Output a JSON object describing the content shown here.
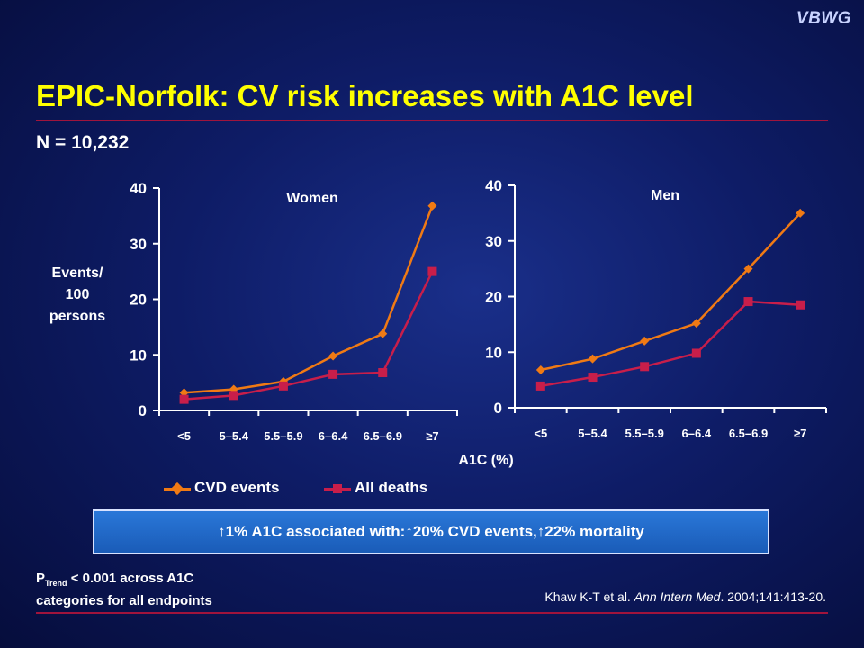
{
  "logo": "VBWG",
  "title": "EPIC-Norfolk: CV risk increases with A1C level",
  "subtitle": "N = 10,232",
  "colors": {
    "cvd": "#f07a14",
    "deaths": "#c81e4a",
    "title": "#ffff00",
    "rule": "#a0143c"
  },
  "y_axis_label_lines": [
    "Events/",
    "100",
    "persons"
  ],
  "x_axis_label": "A1C (%)",
  "legend": {
    "cvd": "CVD events",
    "deaths": "All deaths"
  },
  "callout": {
    "part1": "1% A1C associated with: ",
    "part2": "20% CVD events, ",
    "part3": "22% mortality",
    "arrow": "↑"
  },
  "ptrend": {
    "p": "P",
    "sub": "Trend",
    "line1_rest": " < 0.001 across A1C",
    "line2": "categories for all endpoints"
  },
  "citation": {
    "authors": "Khaw K-T et al. ",
    "journal": "Ann Intern Med",
    "rest": ". 2004;141:413-20."
  },
  "chart_data": [
    {
      "type": "line",
      "title": "Women",
      "categories": [
        "<5",
        "5–5.4",
        "5.5–5.9",
        "6–6.4",
        "6.5–6.9",
        "≥7"
      ],
      "ylim": [
        0,
        40
      ],
      "yticks": [
        0,
        10,
        20,
        30,
        40
      ],
      "series": [
        {
          "name": "CVD events",
          "values": [
            3.2,
            3.8,
            5.2,
            9.8,
            13.8,
            36.8
          ]
        },
        {
          "name": "All deaths",
          "values": [
            2.0,
            2.7,
            4.4,
            6.5,
            6.8,
            25.0
          ]
        }
      ]
    },
    {
      "type": "line",
      "title": "Men",
      "categories": [
        "<5",
        "5–5.4",
        "5.5–5.9",
        "6–6.4",
        "6.5–6.9",
        "≥7"
      ],
      "ylim": [
        0,
        40
      ],
      "yticks": [
        0,
        10,
        20,
        30,
        40
      ],
      "series": [
        {
          "name": "CVD events",
          "values": [
            6.8,
            8.8,
            12.0,
            15.2,
            25.0,
            35.0
          ]
        },
        {
          "name": "All deaths",
          "values": [
            3.9,
            5.5,
            7.4,
            9.8,
            19.1,
            18.5
          ]
        }
      ]
    }
  ]
}
